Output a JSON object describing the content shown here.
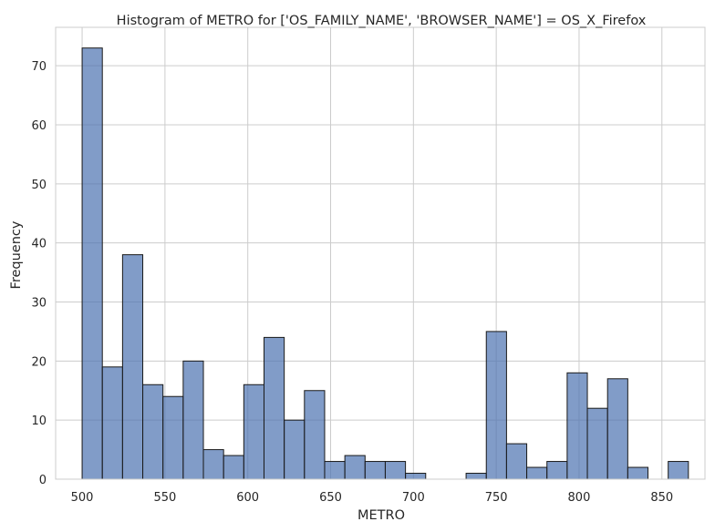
{
  "chart_data": {
    "type": "histogram",
    "title": "Histogram of METRO for ['OS_FAMILY_NAME', 'BROWSER_NAME'] = OS_X_Firefox",
    "xlabel": "METRO",
    "ylabel": "Frequency",
    "xlim": [
      484,
      876
    ],
    "ylim": [
      0,
      76.5
    ],
    "x_ticks": [
      500,
      550,
      600,
      650,
      700,
      750,
      800,
      850
    ],
    "y_ticks": [
      0,
      10,
      20,
      30,
      40,
      50,
      60,
      70
    ],
    "grid": true,
    "bar_color": "#4c72b0",
    "bar_edge_color": "#1a1a1a",
    "bins": [
      {
        "x0": 500.0,
        "x1": 512.2,
        "count": 73
      },
      {
        "x0": 512.2,
        "x1": 524.4,
        "count": 19
      },
      {
        "x0": 524.4,
        "x1": 536.6,
        "count": 38
      },
      {
        "x0": 536.6,
        "x1": 548.8,
        "count": 16
      },
      {
        "x0": 548.8,
        "x1": 561.0,
        "count": 14
      },
      {
        "x0": 561.0,
        "x1": 573.2,
        "count": 20
      },
      {
        "x0": 573.2,
        "x1": 585.4,
        "count": 5
      },
      {
        "x0": 585.4,
        "x1": 597.6,
        "count": 4
      },
      {
        "x0": 597.6,
        "x1": 609.8,
        "count": 16
      },
      {
        "x0": 609.8,
        "x1": 622.0,
        "count": 24
      },
      {
        "x0": 622.0,
        "x1": 634.2,
        "count": 10
      },
      {
        "x0": 634.2,
        "x1": 646.4,
        "count": 15
      },
      {
        "x0": 646.4,
        "x1": 658.6,
        "count": 3
      },
      {
        "x0": 658.6,
        "x1": 670.8,
        "count": 4
      },
      {
        "x0": 670.8,
        "x1": 683.0,
        "count": 3
      },
      {
        "x0": 683.0,
        "x1": 695.2,
        "count": 3
      },
      {
        "x0": 695.2,
        "x1": 707.4,
        "count": 1
      },
      {
        "x0": 707.4,
        "x1": 719.6,
        "count": 0
      },
      {
        "x0": 719.6,
        "x1": 731.8,
        "count": 0
      },
      {
        "x0": 731.8,
        "x1": 744.0,
        "count": 1
      },
      {
        "x0": 744.0,
        "x1": 756.2,
        "count": 25
      },
      {
        "x0": 756.2,
        "x1": 768.4,
        "count": 6
      },
      {
        "x0": 768.4,
        "x1": 780.6,
        "count": 2
      },
      {
        "x0": 780.6,
        "x1": 792.8,
        "count": 3
      },
      {
        "x0": 792.8,
        "x1": 805.0,
        "count": 18
      },
      {
        "x0": 805.0,
        "x1": 817.2,
        "count": 12
      },
      {
        "x0": 817.2,
        "x1": 829.4,
        "count": 17
      },
      {
        "x0": 829.4,
        "x1": 841.6,
        "count": 2
      },
      {
        "x0": 841.6,
        "x1": 853.8,
        "count": 0
      },
      {
        "x0": 853.8,
        "x1": 866.0,
        "count": 3
      }
    ]
  }
}
